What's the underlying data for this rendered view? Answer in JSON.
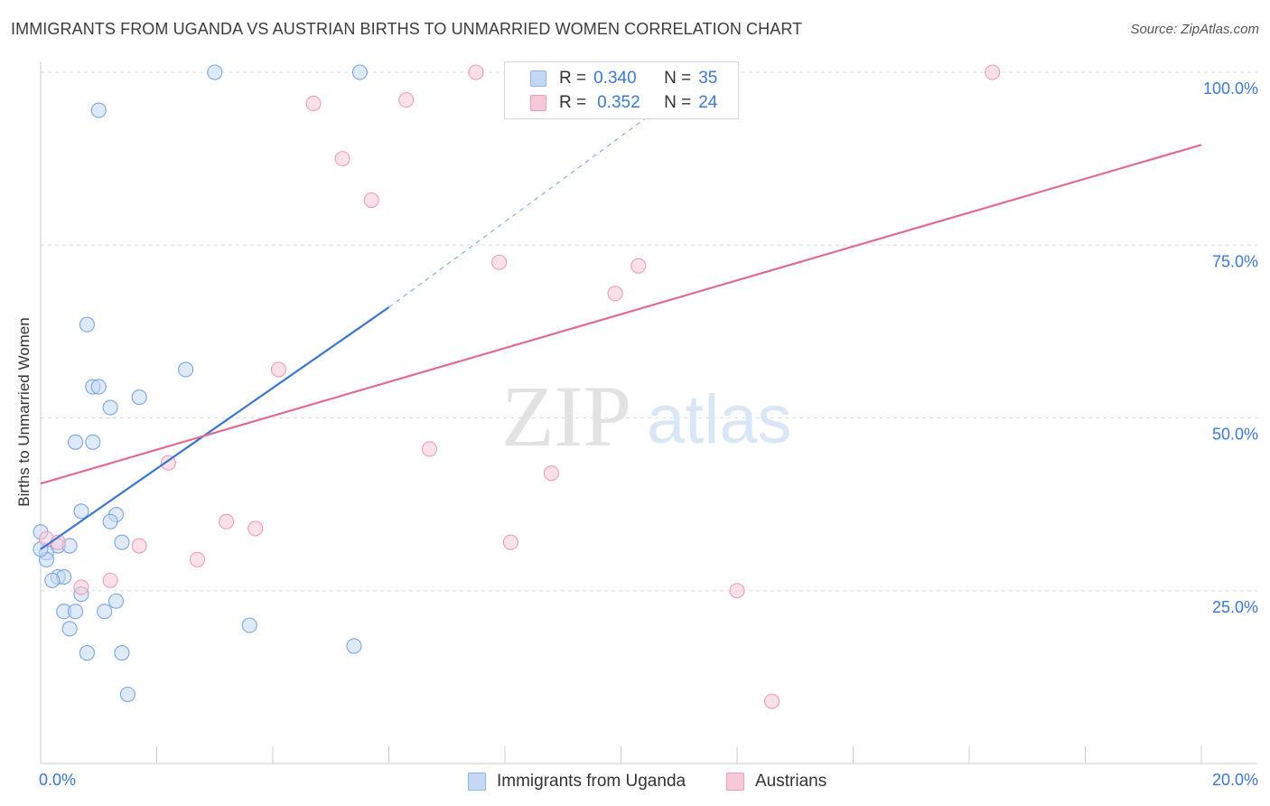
{
  "header": {
    "title": "IMMIGRANTS FROM UGANDA VS AUSTRIAN BIRTHS TO UNMARRIED WOMEN CORRELATION CHART",
    "source": "Source: ZipAtlas.com"
  },
  "watermark": {
    "zip": "ZIP",
    "atlas": "atlas"
  },
  "legend": {
    "r_label": "R =",
    "n_label": "N =",
    "entries": [
      {
        "r": "0.340",
        "n": "35"
      },
      {
        "r": "0.352",
        "n": "24"
      }
    ]
  },
  "colors": {
    "blue": "#3a76d0",
    "blue_fill": "#c4d8f4",
    "pink": "#e06c92",
    "pink_fill": "#f6c9d7",
    "axis_label": "#3b78d8",
    "grid": "#dddddd"
  },
  "chart_data": {
    "type": "scatter",
    "ylabel": "Births to Unmarried Women",
    "xlim": [
      0,
      20
    ],
    "ylim": [
      0,
      100
    ],
    "x_tick_labels": [
      {
        "value": 0,
        "label": "0.0%"
      },
      {
        "value": 20,
        "label": "20.0%"
      }
    ],
    "y_tick_labels": [
      {
        "value": 25,
        "label": "25.0%"
      },
      {
        "value": 50,
        "label": "50.0%"
      },
      {
        "value": 75,
        "label": "75.0%"
      },
      {
        "value": 100,
        "label": "100.0%"
      }
    ],
    "grid": true,
    "series": [
      {
        "name": "Immigrants from Uganda",
        "color": "blue",
        "points": [
          [
            3.0,
            100.0
          ],
          [
            5.5,
            100.0
          ],
          [
            1.0,
            94.5
          ],
          [
            0.8,
            63.5
          ],
          [
            2.5,
            57.0
          ],
          [
            0.9,
            54.5
          ],
          [
            1.0,
            54.5
          ],
          [
            1.7,
            53.0
          ],
          [
            1.2,
            51.5
          ],
          [
            0.6,
            46.5
          ],
          [
            0.9,
            46.5
          ],
          [
            0.7,
            36.5
          ],
          [
            1.3,
            36.0
          ],
          [
            1.2,
            35.0
          ],
          [
            0.0,
            33.5
          ],
          [
            1.4,
            32.0
          ],
          [
            0.3,
            31.5
          ],
          [
            0.5,
            31.5
          ],
          [
            0.1,
            30.5
          ],
          [
            0.1,
            29.5
          ],
          [
            0.3,
            27.0
          ],
          [
            0.4,
            27.0
          ],
          [
            0.2,
            26.5
          ],
          [
            0.7,
            24.5
          ],
          [
            1.3,
            23.5
          ],
          [
            0.4,
            22.0
          ],
          [
            0.6,
            22.0
          ],
          [
            1.1,
            22.0
          ],
          [
            3.6,
            20.0
          ],
          [
            0.5,
            19.5
          ],
          [
            0.8,
            16.0
          ],
          [
            1.4,
            16.0
          ],
          [
            5.4,
            17.0
          ],
          [
            1.5,
            10.0
          ],
          [
            0.0,
            31.0
          ]
        ],
        "trend": {
          "x": [
            0.0,
            6.0
          ],
          "y": [
            31.0,
            66.0
          ],
          "dashed_to": [
            11.5,
            100.0
          ]
        }
      },
      {
        "name": "Austrians",
        "color": "pink",
        "points": [
          [
            7.5,
            100.0
          ],
          [
            16.4,
            100.0
          ],
          [
            6.3,
            96.0
          ],
          [
            4.7,
            95.5
          ],
          [
            5.2,
            87.5
          ],
          [
            5.7,
            81.5
          ],
          [
            7.9,
            72.5
          ],
          [
            10.3,
            72.0
          ],
          [
            9.9,
            68.0
          ],
          [
            4.1,
            57.0
          ],
          [
            6.7,
            45.5
          ],
          [
            2.2,
            43.5
          ],
          [
            8.8,
            42.0
          ],
          [
            3.2,
            35.0
          ],
          [
            3.7,
            34.0
          ],
          [
            0.1,
            32.5
          ],
          [
            1.7,
            31.5
          ],
          [
            8.1,
            32.0
          ],
          [
            2.7,
            29.5
          ],
          [
            1.2,
            26.5
          ],
          [
            0.7,
            25.5
          ],
          [
            12.0,
            25.0
          ],
          [
            12.6,
            9.0
          ],
          [
            0.3,
            32.0
          ]
        ],
        "trend": {
          "x": [
            0.0,
            20.0
          ],
          "y": [
            40.5,
            89.5
          ]
        }
      }
    ]
  },
  "bottom_legend": [
    {
      "label": "Immigrants from Uganda"
    },
    {
      "label": "Austrians"
    }
  ]
}
